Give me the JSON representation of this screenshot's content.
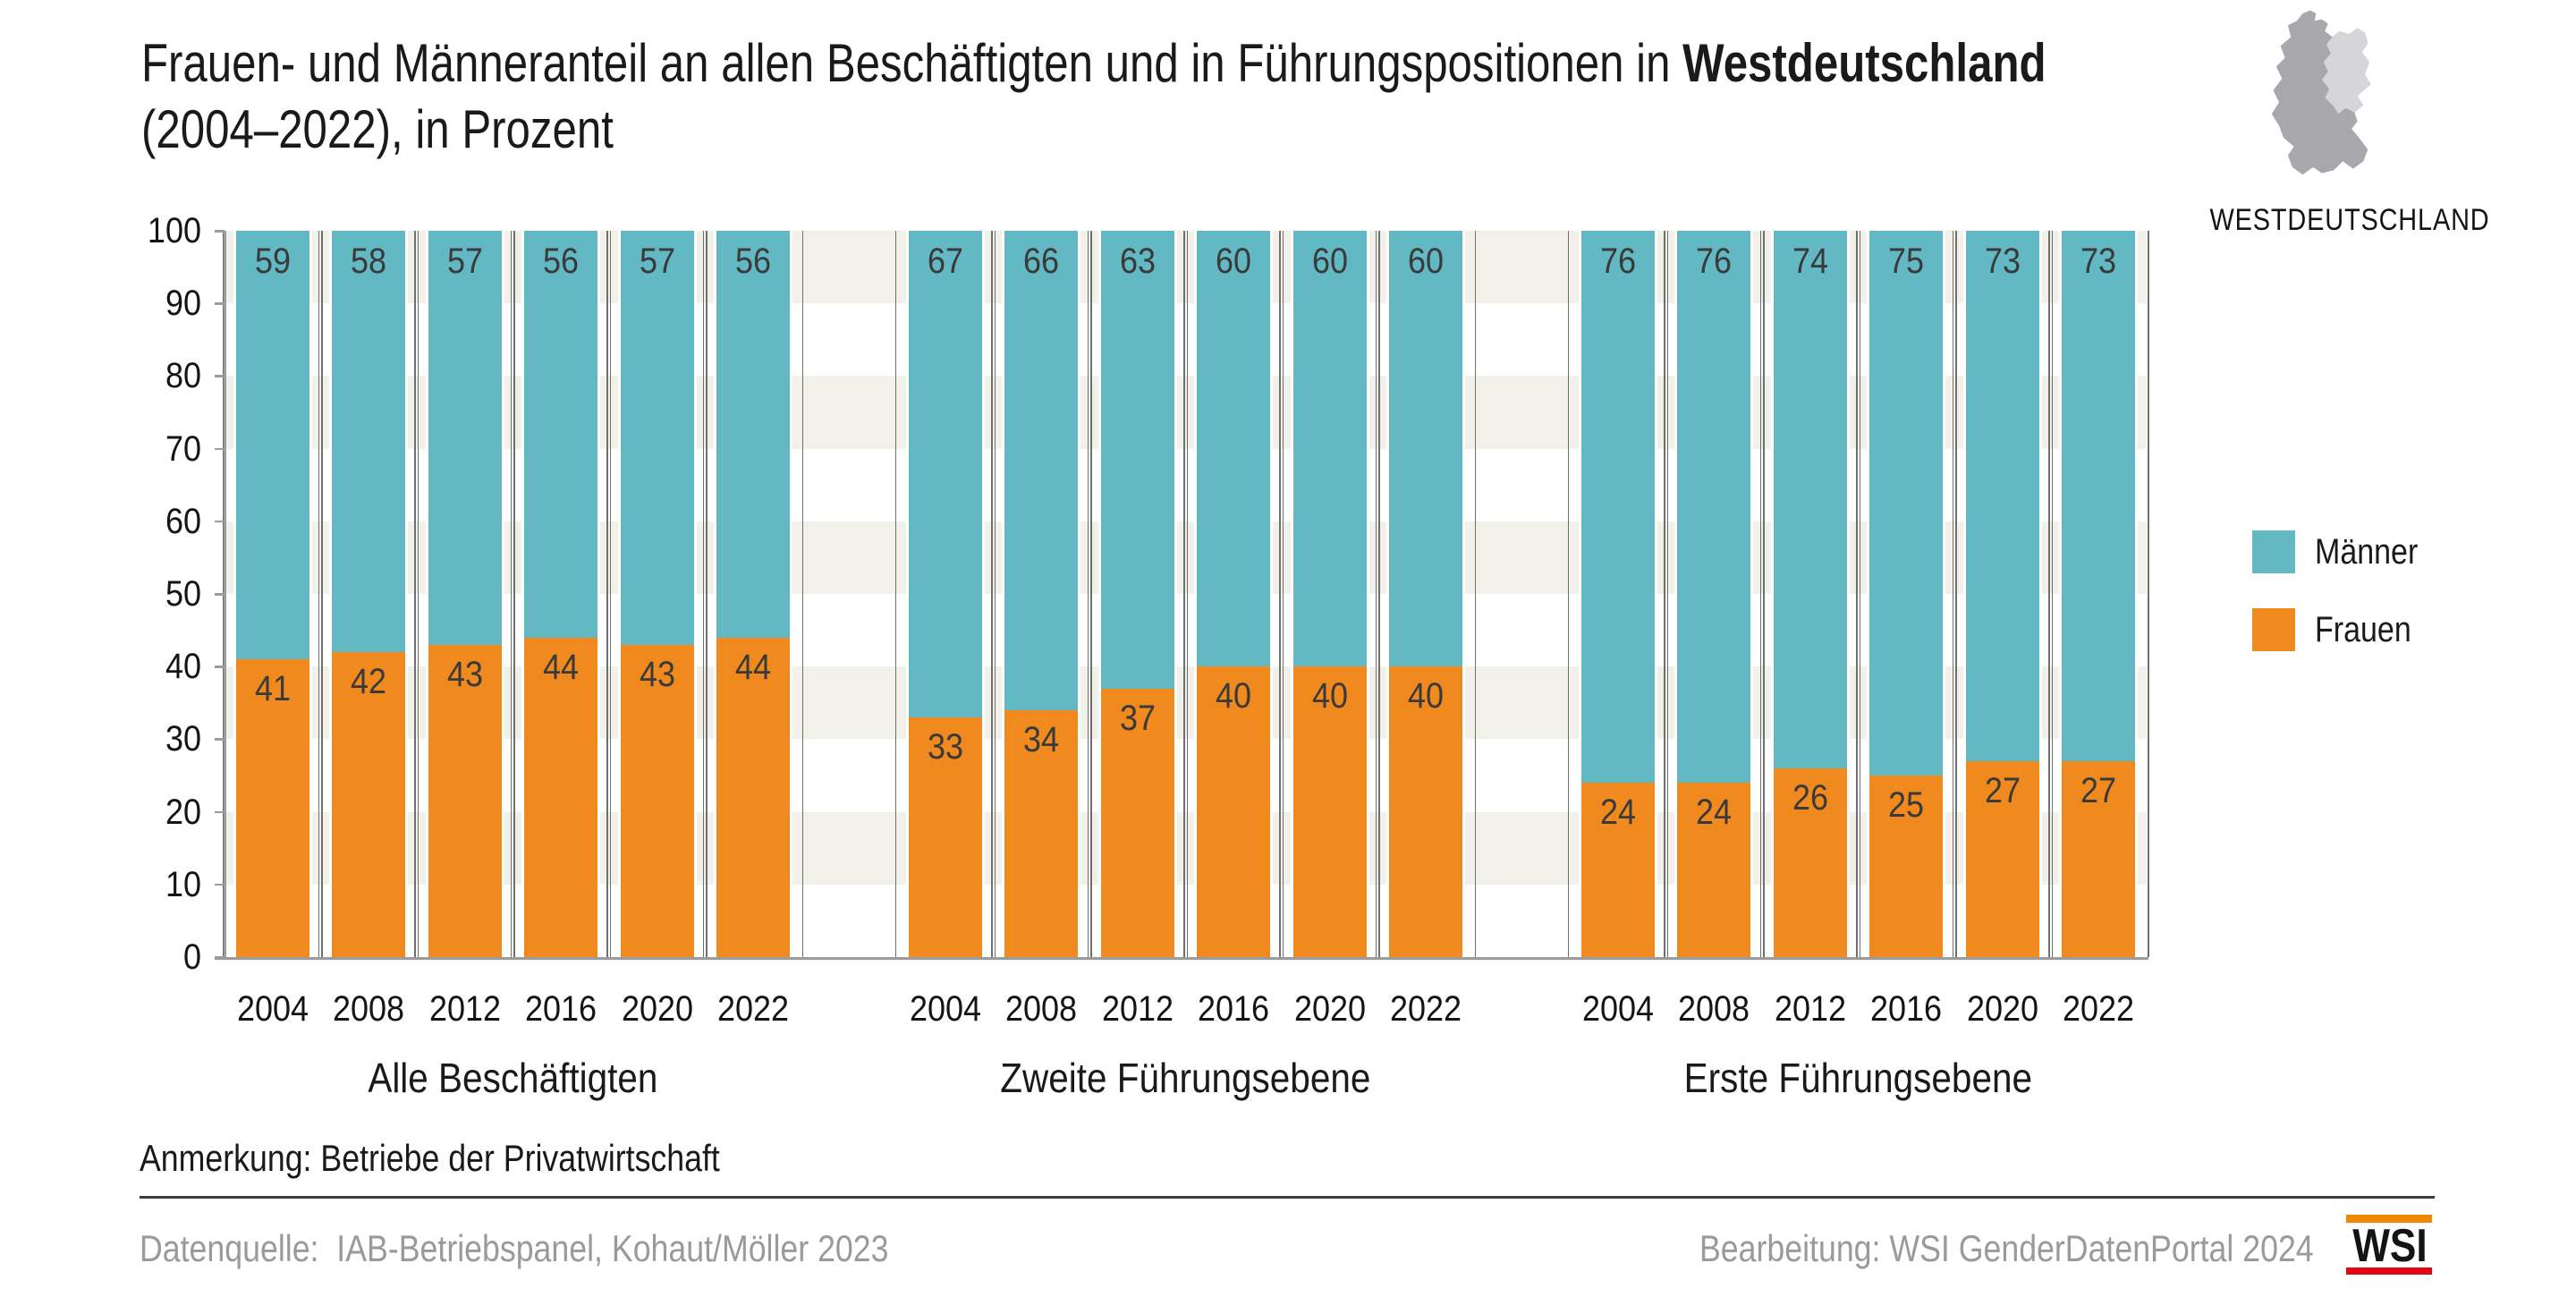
{
  "title": {
    "line1_regular": "Frauen- und Männeranteil an allen Beschäftigten und in Führungspositionen in ",
    "line1_bold": "Westdeutschland",
    "line2": "(2004–2022), in Prozent"
  },
  "map": {
    "label": "WESTDEUTSCHLAND",
    "west_color": "#A8A8AC",
    "east_color": "#D6D6D8"
  },
  "legend": {
    "items": [
      {
        "label": "Männer",
        "color": "#62B8C3"
      },
      {
        "label": "Frauen",
        "color": "#F08A1E"
      }
    ]
  },
  "note": "Anmerkung: Betriebe der Privatwirtschaft",
  "footer": {
    "source": "Datenquelle:  IAB-Betriebspanel, Kohaut/Möller 2023",
    "editing": "Bearbeitung: WSI GenderDatenPortal 2024",
    "logo_text": "WSI"
  },
  "colors": {
    "maenner": "#62B8C3",
    "frauen": "#F08A1E",
    "stripe": "#F2F1E9",
    "gridline": "#6F6F6F",
    "axis": "#9C9C9C",
    "value_label": "#3A3A3A",
    "wsi_orange": "#F18700",
    "wsi_red": "#E30613"
  },
  "chart_data": {
    "type": "bar",
    "stacked": true,
    "unit": "Prozent",
    "title": "Frauen- und Männeranteil an allen Beschäftigten und in Führungspositionen in Westdeutschland (2004–2022), in Prozent",
    "ylim": [
      0,
      100
    ],
    "ytick_step": 10,
    "yticks": [
      0,
      10,
      20,
      30,
      40,
      50,
      60,
      70,
      80,
      90,
      100
    ],
    "grid": "horizontal-bands",
    "legend_position": "right",
    "categories_years": [
      "2004",
      "2008",
      "2012",
      "2016",
      "2020",
      "2022"
    ],
    "groups": [
      {
        "label": "Alle Beschäftigten",
        "series": [
          {
            "name": "Männer",
            "values": [
              59,
              58,
              57,
              56,
              57,
              56
            ]
          },
          {
            "name": "Frauen",
            "values": [
              41,
              42,
              43,
              44,
              43,
              44
            ]
          }
        ]
      },
      {
        "label": "Zweite Führungsebene",
        "series": [
          {
            "name": "Männer",
            "values": [
              67,
              66,
              63,
              60,
              60,
              60
            ]
          },
          {
            "name": "Frauen",
            "values": [
              33,
              34,
              37,
              40,
              40,
              40
            ]
          }
        ]
      },
      {
        "label": "Erste Führungsebene",
        "series": [
          {
            "name": "Männer",
            "values": [
              76,
              76,
              74,
              75,
              73,
              73
            ]
          },
          {
            "name": "Frauen",
            "values": [
              24,
              24,
              26,
              25,
              27,
              27
            ]
          }
        ]
      }
    ]
  }
}
